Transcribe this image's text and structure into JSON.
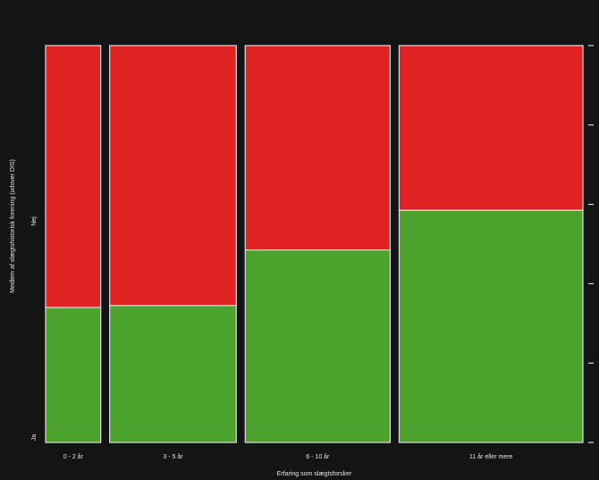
{
  "chart_data": {
    "type": "mosaic",
    "title": "",
    "xlabel": "Erfaring som slægtsforsker",
    "ylabel": "Medlem af slægtshistorisk forening (udover DIS)",
    "categories": [
      "0 - 2 år",
      "3 - 5 år",
      "6 - 10 år",
      "11 år eller mere"
    ],
    "column_widths": [
      0.135,
      0.31,
      0.355,
      0.45
    ],
    "y_categories": [
      "Ja",
      "Nej"
    ],
    "series": [
      {
        "name": "Ja",
        "values": [
          0.34,
          0.345,
          0.485,
          0.585
        ]
      },
      {
        "name": "Nej",
        "values": [
          0.66,
          0.655,
          0.515,
          0.415
        ]
      }
    ],
    "ylim": [
      0,
      1
    ],
    "colors": {
      "Ja": "#4ba32e",
      "Nej": "#e12222",
      "background": "#141414",
      "border": "#dedede"
    },
    "grid": false
  }
}
